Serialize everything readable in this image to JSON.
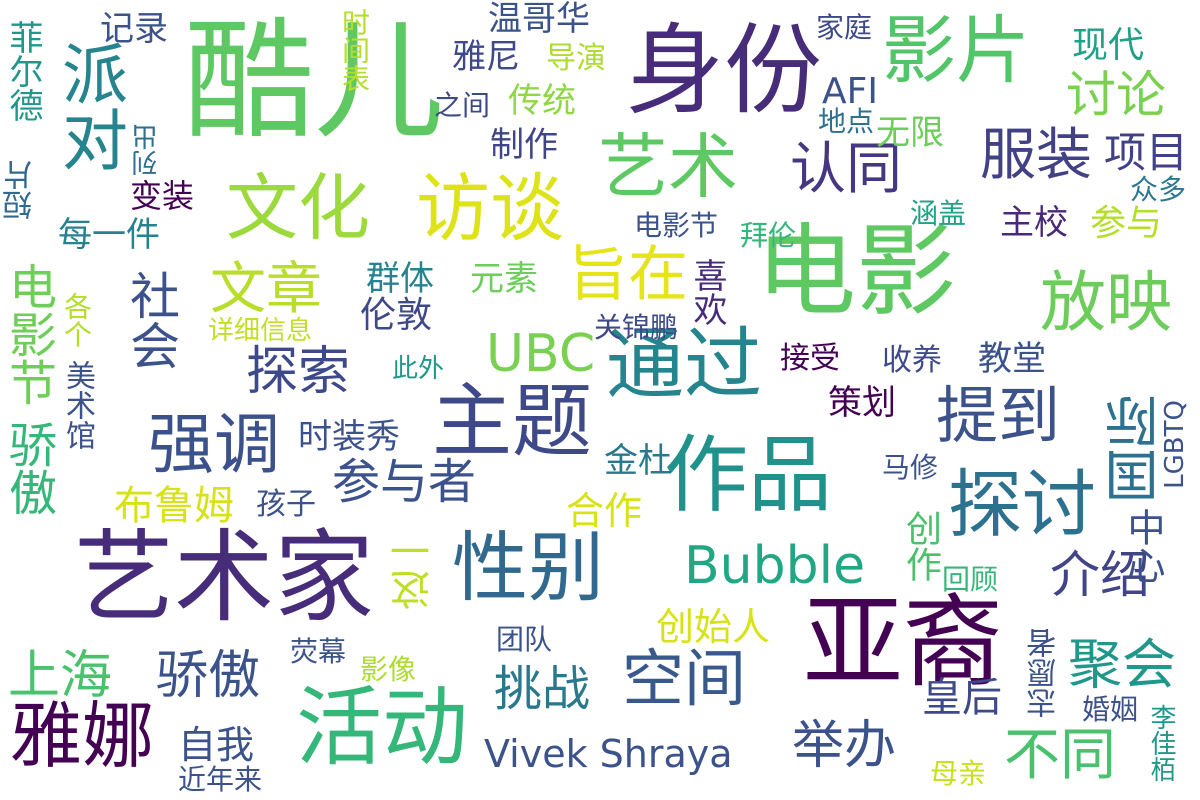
{
  "words": [
    {
      "t": "酷儿",
      "c": "#5ec962"
    },
    {
      "t": "身份",
      "c": "#472c7a"
    },
    {
      "t": "电影",
      "c": "#5ec962"
    },
    {
      "t": "艺术家",
      "c": "#472c7a"
    },
    {
      "t": "亚裔",
      "c": "#440154"
    },
    {
      "t": "作品",
      "c": "#21918c"
    },
    {
      "t": "活动",
      "c": "#35b779"
    },
    {
      "t": "影片",
      "c": "#52c569"
    },
    {
      "t": "主题",
      "c": "#3e4989"
    },
    {
      "t": "通过",
      "c": "#25858e"
    },
    {
      "t": "文化",
      "c": "#9bd93c"
    },
    {
      "t": "访谈",
      "c": "#dde318"
    },
    {
      "t": "艺术",
      "c": "#5ec962"
    },
    {
      "t": "性别",
      "c": "#31688e"
    },
    {
      "t": "探讨",
      "c": "#2c728e"
    },
    {
      "t": "雅娜",
      "c": "#440154"
    },
    {
      "t": "放映",
      "c": "#6ccd5a"
    },
    {
      "t": "派对",
      "c": "#25848e"
    },
    {
      "t": "强调",
      "c": "#3b518b"
    },
    {
      "t": "提到",
      "c": "#3b528b"
    },
    {
      "t": "服装",
      "c": "#424186"
    },
    {
      "t": "认同",
      "c": "#453781"
    },
    {
      "t": "讨论",
      "c": "#7ad151"
    },
    {
      "t": "空间",
      "c": "#38598c"
    },
    {
      "t": "聚会",
      "c": "#1f978b"
    },
    {
      "t": "Bubble",
      "c": "#22a785"
    },
    {
      "t": "Vivek Shraya",
      "c": "#3b528b"
    },
    {
      "t": "UBC",
      "c": "#7ad151"
    },
    {
      "t": "旨在",
      "c": "#e5e419"
    },
    {
      "t": "文章",
      "c": "#b8de29"
    },
    {
      "t": "探索",
      "c": "#3e4989"
    },
    {
      "t": "社会",
      "c": "#3b528b"
    },
    {
      "t": "电影节",
      "c": "#6ece58"
    },
    {
      "t": "骄傲",
      "c": "#35b779"
    },
    {
      "t": "上海",
      "c": "#4ac16d"
    },
    {
      "t": "骄傲",
      "c": "#3b528b"
    },
    {
      "t": "参与者",
      "c": "#3b528b"
    },
    {
      "t": "挑战",
      "c": "#2a788e"
    },
    {
      "t": "举办",
      "c": "#3b528b"
    },
    {
      "t": "不同",
      "c": "#4ac16d"
    },
    {
      "t": "介绍",
      "c": "#414487"
    },
    {
      "t": "国际",
      "c": "#2c728e"
    },
    {
      "t": "温哥华",
      "c": "#3b528b"
    },
    {
      "t": "菲尔德",
      "c": "#1f988b"
    },
    {
      "t": "记录",
      "c": "#3b528b"
    },
    {
      "t": "雅尼",
      "c": "#3e4989"
    },
    {
      "t": "导演",
      "c": "#addc30"
    },
    {
      "t": "时间表",
      "c": "#b5de2b"
    },
    {
      "t": "传统",
      "c": "#8fd744"
    },
    {
      "t": "之间",
      "c": "#3e4989"
    },
    {
      "t": "制作",
      "c": "#414487"
    },
    {
      "t": "无限",
      "c": "#6ccd5a"
    },
    {
      "t": "现代",
      "c": "#1fa187"
    },
    {
      "t": "家庭",
      "c": "#3e4989"
    },
    {
      "t": "AFI",
      "c": "#3b528b"
    },
    {
      "t": "地点",
      "c": "#2c728e"
    },
    {
      "t": "项目",
      "c": "#424186"
    },
    {
      "t": "众多",
      "c": "#2a788e"
    },
    {
      "t": "列出",
      "c": "#2e6f8e"
    },
    {
      "t": "短片",
      "c": "#31688e"
    },
    {
      "t": "变装",
      "c": "#440154"
    },
    {
      "t": "每一件",
      "c": "#26828e"
    },
    {
      "t": "主校",
      "c": "#482878"
    },
    {
      "t": "参与",
      "c": "#b5de2b"
    },
    {
      "t": "涵盖",
      "c": "#20a386"
    },
    {
      "t": "电影节",
      "c": "#3b528b"
    },
    {
      "t": "拜伦",
      "c": "#35b779"
    },
    {
      "t": "喜欢",
      "c": "#472c7a"
    },
    {
      "t": "群体",
      "c": "#26828e"
    },
    {
      "t": "元素",
      "c": "#6ccd5a"
    },
    {
      "t": "各个",
      "c": "#b5de2b"
    },
    {
      "t": "伦敦",
      "c": "#3e4989"
    },
    {
      "t": "详细信息",
      "c": "#c2df23"
    },
    {
      "t": "关锦鹏",
      "c": "#3e4989"
    },
    {
      "t": "美术馆",
      "c": "#3b528b"
    },
    {
      "t": "此外",
      "c": "#1f988b"
    },
    {
      "t": "接受",
      "c": "#440154"
    },
    {
      "t": "收养",
      "c": "#3e4989"
    },
    {
      "t": "教堂",
      "c": "#3b528b"
    },
    {
      "t": "策划",
      "c": "#440154"
    },
    {
      "t": "LGBTQ",
      "c": "#3b528b"
    },
    {
      "t": "时装秀",
      "c": "#3b528b"
    },
    {
      "t": "金杜",
      "c": "#2a788e"
    },
    {
      "t": "马修",
      "c": "#3b528b"
    },
    {
      "t": "布鲁姆",
      "c": "#d8e219"
    },
    {
      "t": "孩子",
      "c": "#3b528b"
    },
    {
      "t": "合作",
      "c": "#d8e219"
    },
    {
      "t": "中心",
      "c": "#3b528b"
    },
    {
      "t": "创作",
      "c": "#4ac16d"
    },
    {
      "t": "回顾",
      "c": "#35b779"
    },
    {
      "t": "这一",
      "c": "#bddf26"
    },
    {
      "t": "创始人",
      "c": "#d8e219"
    },
    {
      "t": "团队",
      "c": "#3b528b"
    },
    {
      "t": "荧幕",
      "c": "#3b528b"
    },
    {
      "t": "影像",
      "c": "#addc30"
    },
    {
      "t": "志愿者",
      "c": "#3b528b"
    },
    {
      "t": "婚姻",
      "c": "#3b528b"
    },
    {
      "t": "皇后",
      "c": "#3e4989"
    },
    {
      "t": "自我",
      "c": "#3b528b"
    },
    {
      "t": "近年来",
      "c": "#3b528b"
    },
    {
      "t": "母亲",
      "c": "#c8e020"
    },
    {
      "t": "李佳栢",
      "c": "#1f988b"
    }
  ]
}
